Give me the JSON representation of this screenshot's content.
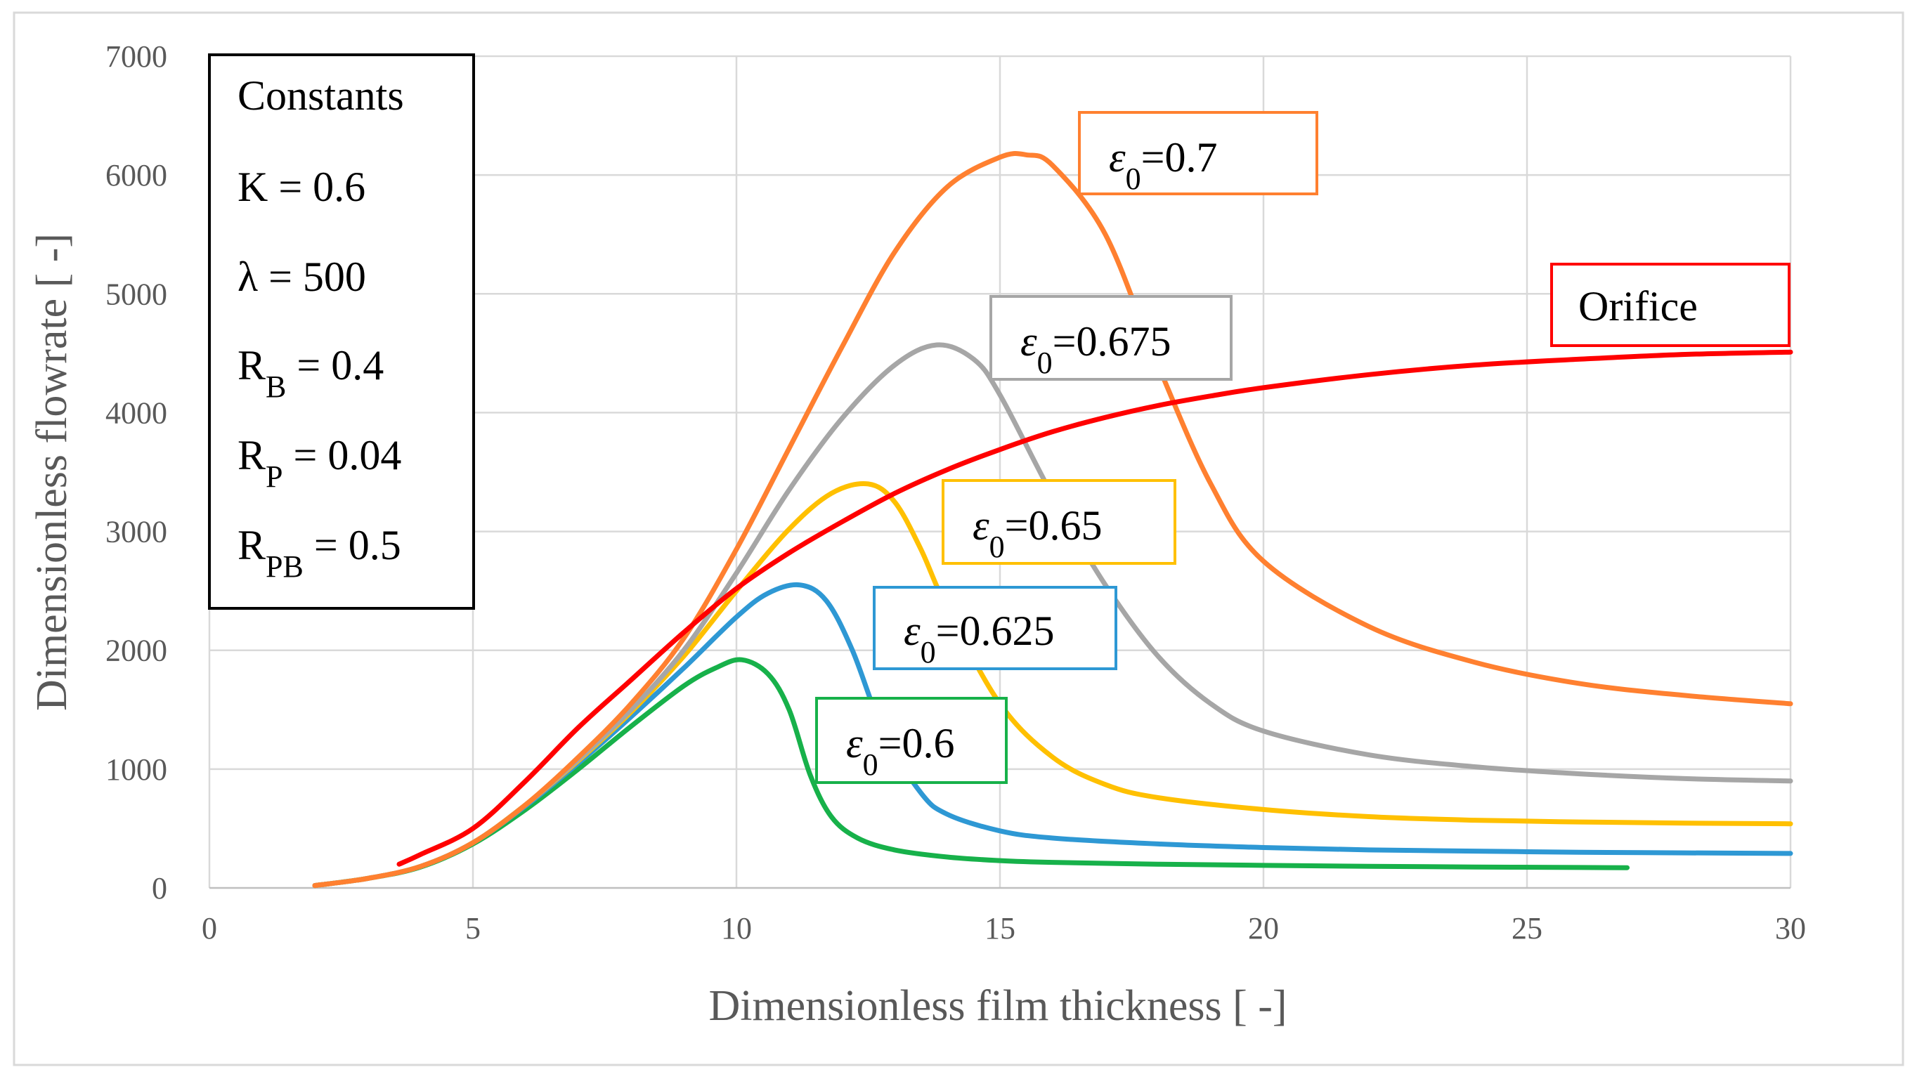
{
  "chart_data": {
    "type": "line",
    "xlabel": "Dimensionless film thickness [     -]",
    "ylabel": "Dimensionless flowrate [     -]",
    "xlim": [
      0,
      30
    ],
    "ylim": [
      0,
      7000
    ],
    "x_ticks": [
      0,
      5,
      10,
      15,
      20,
      25,
      30
    ],
    "y_ticks": [
      0,
      1000,
      2000,
      3000,
      4000,
      5000,
      6000,
      7000
    ],
    "x_tick_labels": [
      "0",
      "5",
      "10",
      "15",
      "20",
      "25",
      "30"
    ],
    "y_tick_labels": [
      "0",
      "1000",
      "2000",
      "3000",
      "4000",
      "5000",
      "6000",
      "7000"
    ],
    "grid": true,
    "constants_box": {
      "title": "Constants",
      "lines": [
        {
          "text": "K = 0.6"
        },
        {
          "text": "λ = 500"
        },
        {
          "base": "R",
          "sub": "B",
          "rest": " = 0.4"
        },
        {
          "base": "R",
          "sub": "P",
          "rest": " = 0.04"
        },
        {
          "base": "R",
          "sub": "PB",
          "rest": " = 0.5"
        }
      ]
    },
    "series": [
      {
        "name": "Orifice",
        "label": {
          "base": "Orifice"
        },
        "color": "#ff0000",
        "x": [
          3.6,
          4.0,
          5.0,
          6.0,
          7.0,
          8.0,
          9.0,
          10.0,
          11.0,
          12.0,
          13.0,
          14.0,
          15.0,
          16.0,
          17.0,
          18.0,
          19.0,
          20.0,
          22.0,
          24.0,
          26.0,
          28.0,
          30.0
        ],
        "values": [
          200,
          280,
          500,
          900,
          1350,
          1750,
          2150,
          2520,
          2820,
          3080,
          3320,
          3520,
          3690,
          3840,
          3960,
          4060,
          4140,
          4210,
          4320,
          4400,
          4450,
          4490,
          4510
        ]
      },
      {
        "name": "ε0=0.7",
        "label": {
          "base": "ε",
          "sub": "0",
          "rest": "=0.7"
        },
        "color": "#ff8030",
        "x": [
          2.0,
          3.0,
          4.0,
          5.0,
          6.0,
          7.0,
          8.0,
          9.0,
          10.0,
          11.0,
          12.0,
          13.0,
          14.0,
          15.0,
          15.5,
          16.0,
          17.0,
          18.0,
          19.0,
          20.0,
          22.0,
          24.0,
          26.0,
          28.0,
          30.0
        ],
        "values": [
          20,
          80,
          180,
          380,
          700,
          1100,
          1550,
          2100,
          2850,
          3700,
          4550,
          5350,
          5900,
          6150,
          6170,
          6080,
          5500,
          4400,
          3400,
          2750,
          2200,
          1900,
          1720,
          1620,
          1550
        ]
      },
      {
        "name": "ε0=0.675",
        "label": {
          "base": "ε",
          "sub": "0",
          "rest": "=0.675"
        },
        "color": "#a6a6a6",
        "x": [
          2.0,
          3.0,
          4.0,
          5.0,
          6.0,
          7.0,
          8.0,
          9.0,
          10.0,
          11.0,
          12.0,
          13.0,
          13.8,
          14.5,
          15.0,
          16.0,
          17.0,
          18.0,
          19.0,
          20.0,
          22.0,
          24.0,
          26.0,
          28.0,
          30.0
        ],
        "values": [
          20,
          80,
          180,
          380,
          700,
          1080,
          1500,
          2000,
          2650,
          3350,
          3950,
          4400,
          4570,
          4450,
          4150,
          3300,
          2550,
          1950,
          1550,
          1320,
          1120,
          1020,
          960,
          920,
          900
        ]
      },
      {
        "name": "ε0=0.65",
        "label": {
          "base": "ε",
          "sub": "0",
          "rest": "=0.65"
        },
        "color": "#ffc000",
        "x": [
          2.0,
          3.0,
          4.0,
          5.0,
          6.0,
          7.0,
          8.0,
          9.0,
          10.0,
          11.0,
          11.8,
          12.5,
          13.0,
          13.5,
          14.0,
          15.0,
          16.0,
          17.0,
          18.0,
          20.0,
          22.0,
          24.0,
          26.0,
          28.0,
          30.0
        ],
        "values": [
          20,
          80,
          180,
          380,
          700,
          1070,
          1480,
          1950,
          2500,
          3020,
          3320,
          3400,
          3250,
          2850,
          2350,
          1550,
          1100,
          870,
          760,
          660,
          600,
          570,
          555,
          545,
          540
        ]
      },
      {
        "name": "ε0=0.625",
        "label": {
          "base": "ε",
          "sub": "0",
          "rest": "=0.625"
        },
        "color": "#2e98d4",
        "x": [
          2.0,
          3.0,
          4.0,
          5.0,
          6.0,
          7.0,
          8.0,
          9.0,
          10.0,
          10.6,
          11.2,
          11.7,
          12.2,
          12.8,
          13.5,
          14.0,
          15.0,
          16.0,
          18.0,
          20.0,
          22.0,
          24.0,
          26.0,
          28.0,
          30.0
        ],
        "values": [
          20,
          80,
          180,
          380,
          690,
          1050,
          1440,
          1850,
          2280,
          2480,
          2550,
          2420,
          2000,
          1300,
          800,
          620,
          480,
          420,
          370,
          340,
          320,
          310,
          300,
          295,
          290
        ]
      },
      {
        "name": "ε0=0.6",
        "label": {
          "base": "ε",
          "sub": "0",
          "rest": "=0.6"
        },
        "color": "#17b14a",
        "x": [
          2.0,
          3.0,
          4.0,
          5.0,
          6.0,
          7.0,
          8.0,
          9.0,
          9.6,
          10.1,
          10.6,
          11.0,
          11.4,
          11.8,
          12.3,
          13.0,
          14.0,
          15.0,
          16.0,
          18.0,
          20.0,
          22.0,
          24.0,
          26.0,
          26.9
        ],
        "values": [
          20,
          80,
          175,
          370,
          660,
          1000,
          1360,
          1700,
          1850,
          1920,
          1800,
          1500,
          950,
          600,
          420,
          320,
          260,
          230,
          215,
          200,
          190,
          182,
          176,
          172,
          170
        ]
      }
    ]
  }
}
